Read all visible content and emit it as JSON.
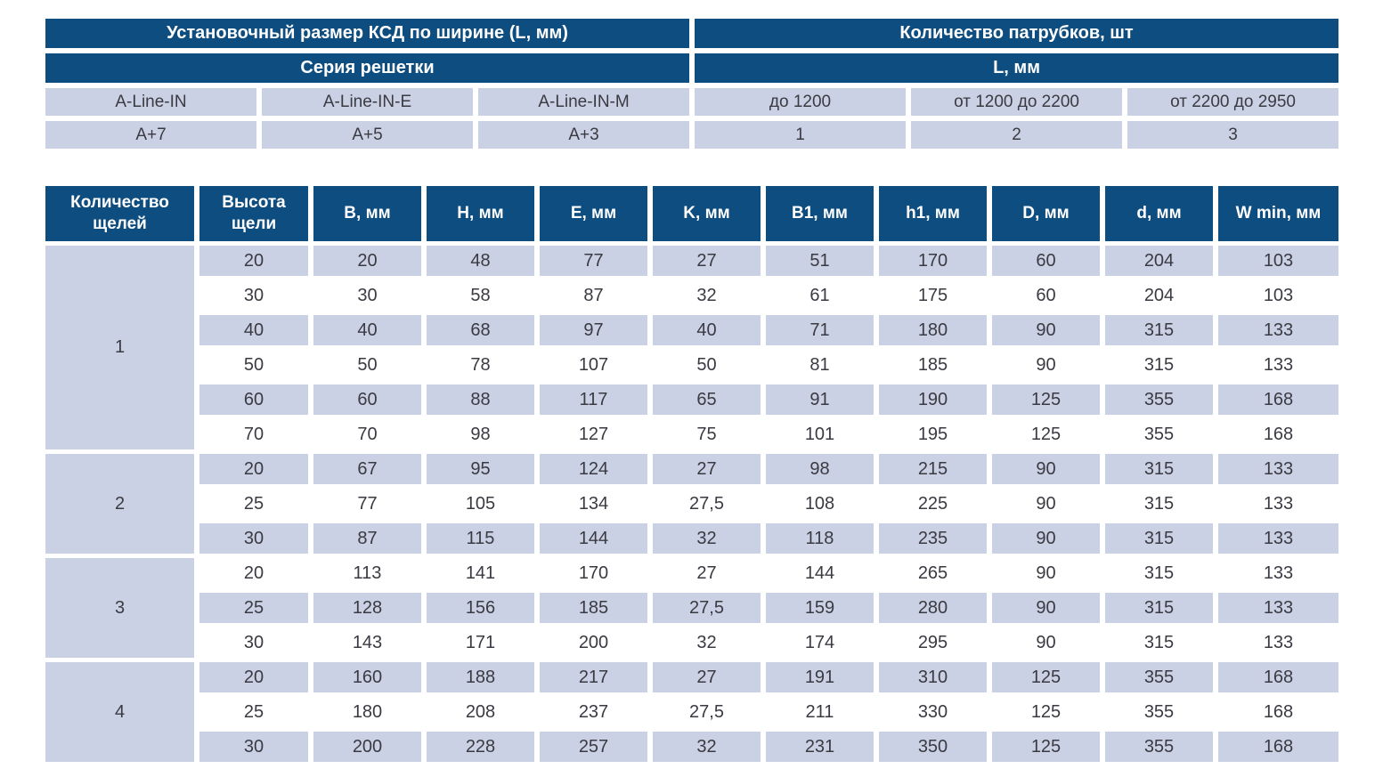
{
  "colors": {
    "navy": "#0e4d80",
    "lavender": "#cbd1e4",
    "text_dark": "#3a3a42",
    "background": "#ffffff"
  },
  "installation_table": {
    "title": "Установочный размер КСД по ширине (L, мм)",
    "subtitle": "Серия решетки",
    "series": [
      "A-Line-IN",
      "A-Line-IN-E",
      "A-Line-IN-M"
    ],
    "values": [
      "A+7",
      "A+5",
      "A+3"
    ]
  },
  "nozzle_table": {
    "title": "Количество патрубков, шт",
    "subtitle": "L, мм",
    "ranges": [
      "до 1200",
      "от 1200 до 2200",
      "от 2200 до 2950"
    ],
    "values": [
      "1",
      "2",
      "3"
    ]
  },
  "main_table": {
    "headers": [
      "Количество щелей",
      "Высота щели",
      "B, мм",
      "H, мм",
      "E, мм",
      "K, мм",
      "B1, мм",
      "h1, мм",
      "D, мм",
      "d, мм",
      "W min, мм"
    ],
    "groups": [
      {
        "slot_count": "1",
        "rows": [
          [
            "20",
            "20",
            "48",
            "77",
            "27",
            "51",
            "170",
            "60",
            "204",
            "103"
          ],
          [
            "30",
            "30",
            "58",
            "87",
            "32",
            "61",
            "175",
            "60",
            "204",
            "103"
          ],
          [
            "40",
            "40",
            "68",
            "97",
            "40",
            "71",
            "180",
            "90",
            "315",
            "133"
          ],
          [
            "50",
            "50",
            "78",
            "107",
            "50",
            "81",
            "185",
            "90",
            "315",
            "133"
          ],
          [
            "60",
            "60",
            "88",
            "117",
            "65",
            "91",
            "190",
            "125",
            "355",
            "168"
          ],
          [
            "70",
            "70",
            "98",
            "127",
            "75",
            "101",
            "195",
            "125",
            "355",
            "168"
          ]
        ]
      },
      {
        "slot_count": "2",
        "rows": [
          [
            "20",
            "67",
            "95",
            "124",
            "27",
            "98",
            "215",
            "90",
            "315",
            "133"
          ],
          [
            "25",
            "77",
            "105",
            "134",
            "27,5",
            "108",
            "225",
            "90",
            "315",
            "133"
          ],
          [
            "30",
            "87",
            "115",
            "144",
            "32",
            "118",
            "235",
            "90",
            "315",
            "133"
          ]
        ]
      },
      {
        "slot_count": "3",
        "rows": [
          [
            "20",
            "113",
            "141",
            "170",
            "27",
            "144",
            "265",
            "90",
            "315",
            "133"
          ],
          [
            "25",
            "128",
            "156",
            "185",
            "27,5",
            "159",
            "280",
            "90",
            "315",
            "133"
          ],
          [
            "30",
            "143",
            "171",
            "200",
            "32",
            "174",
            "295",
            "90",
            "315",
            "133"
          ]
        ]
      },
      {
        "slot_count": "4",
        "rows": [
          [
            "20",
            "160",
            "188",
            "217",
            "27",
            "191",
            "310",
            "125",
            "355",
            "168"
          ],
          [
            "25",
            "180",
            "208",
            "237",
            "27,5",
            "211",
            "330",
            "125",
            "355",
            "168"
          ],
          [
            "30",
            "200",
            "228",
            "257",
            "32",
            "231",
            "350",
            "125",
            "355",
            "168"
          ]
        ]
      }
    ]
  }
}
